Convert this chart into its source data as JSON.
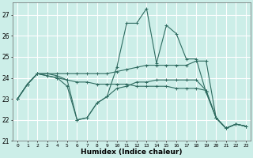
{
  "xlabel": "Humidex (Indice chaleur)",
  "bg_color": "#cceee8",
  "grid_color": "#ffffff",
  "line_color": "#2e6b60",
  "xlim": [
    -0.5,
    23.5
  ],
  "ylim": [
    21,
    27.6
  ],
  "yticks": [
    21,
    22,
    23,
    24,
    25,
    26,
    27
  ],
  "xticks": [
    0,
    1,
    2,
    3,
    4,
    5,
    6,
    7,
    8,
    9,
    10,
    11,
    12,
    13,
    14,
    15,
    16,
    17,
    18,
    19,
    20,
    21,
    22,
    23
  ],
  "series": [
    [
      23.0,
      23.7,
      24.2,
      24.2,
      24.1,
      23.9,
      22.0,
      22.1,
      22.8,
      23.1,
      24.5,
      26.6,
      26.6,
      27.3,
      24.7,
      26.5,
      26.1,
      24.9,
      24.9,
      23.3,
      22.1,
      21.6,
      21.8,
      21.7
    ],
    [
      23.0,
      23.7,
      24.2,
      24.2,
      24.2,
      24.2,
      24.2,
      24.2,
      24.2,
      24.2,
      24.3,
      24.4,
      24.5,
      24.6,
      24.6,
      24.6,
      24.6,
      24.6,
      24.8,
      24.8,
      22.1,
      21.6,
      21.8,
      21.7
    ],
    [
      23.0,
      23.7,
      24.2,
      24.1,
      24.0,
      23.9,
      23.8,
      23.8,
      23.7,
      23.7,
      23.7,
      23.7,
      23.6,
      23.6,
      23.6,
      23.6,
      23.5,
      23.5,
      23.5,
      23.4,
      22.1,
      21.6,
      21.8,
      21.7
    ],
    [
      23.0,
      23.7,
      24.2,
      24.1,
      24.0,
      23.6,
      22.0,
      22.1,
      22.8,
      23.1,
      23.5,
      23.6,
      23.8,
      23.8,
      23.9,
      23.9,
      23.9,
      23.9,
      23.9,
      23.4,
      22.1,
      21.6,
      21.8,
      21.7
    ]
  ]
}
